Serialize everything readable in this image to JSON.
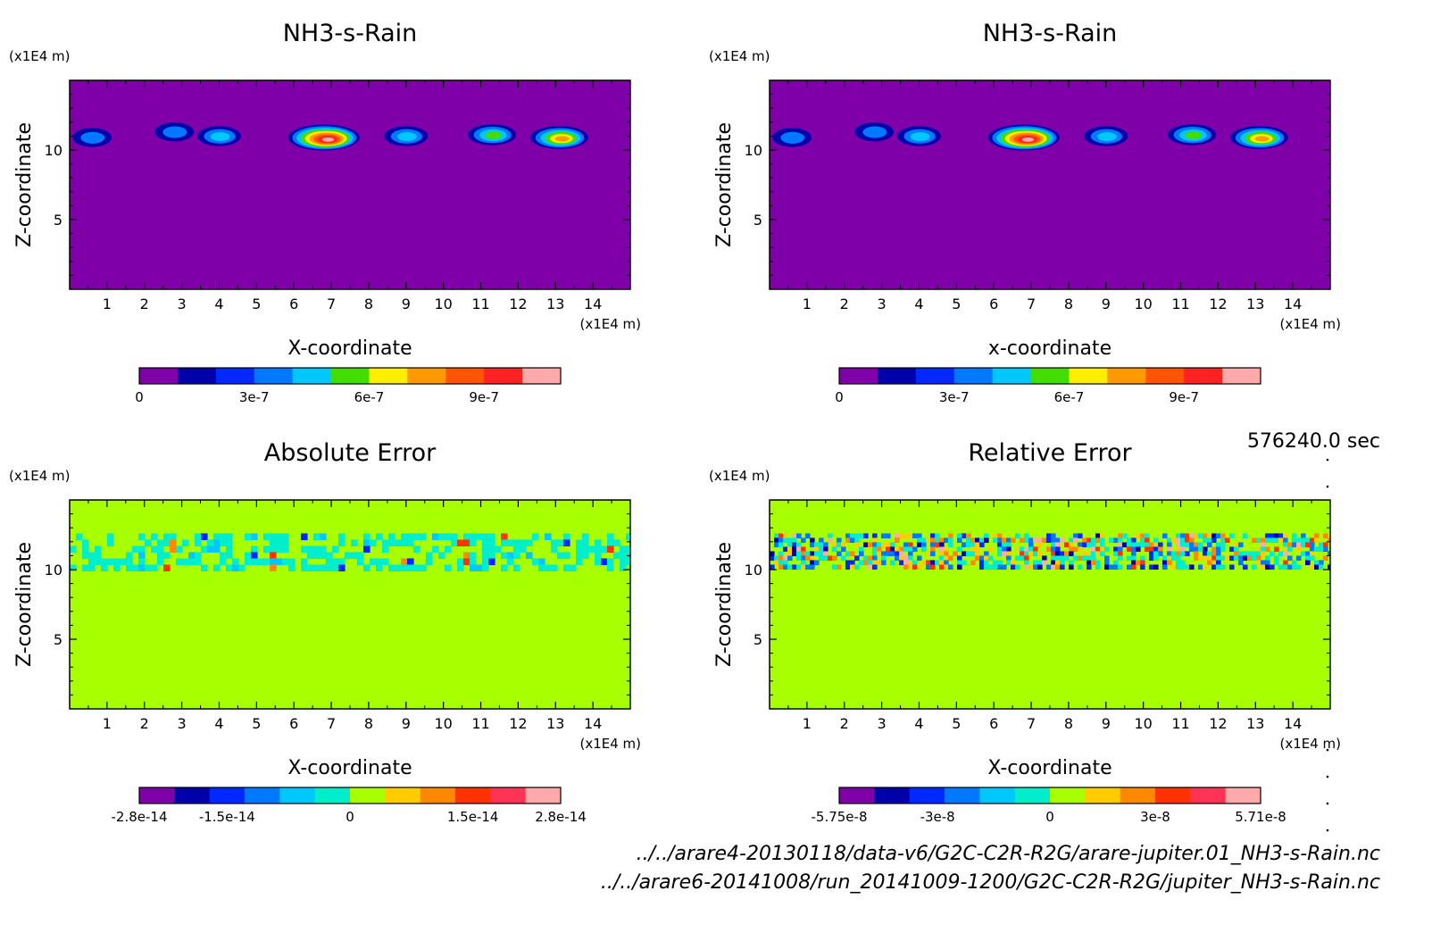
{
  "time_label": "576240.0 sec",
  "footer": {
    "line1": "../../arare4-20130118/data-v6/G2C-C2R-R2G/arare-jupiter.01_NH3-s-Rain.nc",
    "line2": "../../arare6-20141008/run_20141009-1200/G2C-C2R-R2G/jupiter_NH3-s-Rain.nc"
  },
  "chart_data": [
    {
      "type": "heatmap",
      "title": "NH3-s-Rain",
      "xlabel": "X-coordinate",
      "ylabel": "Z-coordinate",
      "x_unit": "(x1E4 m)",
      "y_unit": "(x1E4 m)",
      "xlim": [
        0,
        15
      ],
      "ylim": [
        0,
        15
      ],
      "xticks": [
        1,
        2,
        3,
        4,
        5,
        6,
        7,
        8,
        9,
        10,
        11,
        12,
        13,
        14
      ],
      "yticks": [
        5,
        10
      ],
      "background": "#7f00a8",
      "colorbar": {
        "colors": [
          "#7f00a8",
          "#0000aa",
          "#0028ff",
          "#0078ff",
          "#00c8ff",
          "#44dd00",
          "#ffee00",
          "#ff9900",
          "#ff5500",
          "#ff2222",
          "#ffaaaa"
        ],
        "tick_labels": [
          "0",
          "3e-7",
          "6e-7",
          "9e-7"
        ],
        "tick_positions": [
          0,
          3,
          6,
          9
        ]
      },
      "features": [
        {
          "x": 0.6,
          "z": 10.9,
          "peak": 3
        },
        {
          "x": 2.8,
          "z": 11.3,
          "peak": 3
        },
        {
          "x": 4.0,
          "z": 11.0,
          "peak": 4
        },
        {
          "x": 6.8,
          "z": 10.9,
          "peak": 10
        },
        {
          "x": 9.0,
          "z": 11.0,
          "peak": 4
        },
        {
          "x": 11.3,
          "z": 11.1,
          "peak": 5
        },
        {
          "x": 13.1,
          "z": 10.9,
          "peak": 7
        }
      ]
    },
    {
      "type": "heatmap",
      "title": "NH3-s-Rain",
      "xlabel": "x-coordinate",
      "ylabel": "Z-coordinate",
      "x_unit": "(x1E4 m)",
      "y_unit": "(x1E4 m)",
      "xlim": [
        0,
        15
      ],
      "ylim": [
        0,
        15
      ],
      "xticks": [
        1,
        2,
        3,
        4,
        5,
        6,
        7,
        8,
        9,
        10,
        11,
        12,
        13,
        14
      ],
      "yticks": [
        5,
        10
      ],
      "background": "#7f00a8",
      "colorbar": {
        "colors": [
          "#7f00a8",
          "#0000aa",
          "#0028ff",
          "#0078ff",
          "#00c8ff",
          "#44dd00",
          "#ffee00",
          "#ff9900",
          "#ff5500",
          "#ff2222",
          "#ffaaaa"
        ],
        "tick_labels": [
          "0",
          "3e-7",
          "6e-7",
          "9e-7"
        ],
        "tick_positions": [
          0,
          3,
          6,
          9
        ]
      },
      "features": [
        {
          "x": 0.6,
          "z": 10.9,
          "peak": 3
        },
        {
          "x": 2.8,
          "z": 11.3,
          "peak": 3
        },
        {
          "x": 4.0,
          "z": 11.0,
          "peak": 4
        },
        {
          "x": 6.8,
          "z": 10.9,
          "peak": 10
        },
        {
          "x": 9.0,
          "z": 11.0,
          "peak": 4
        },
        {
          "x": 11.3,
          "z": 11.1,
          "peak": 5
        },
        {
          "x": 13.1,
          "z": 10.9,
          "peak": 7
        }
      ]
    },
    {
      "type": "heatmap",
      "title": "Absolute Error",
      "xlabel": "X-coordinate",
      "ylabel": "Z-coordinate",
      "x_unit": "(x1E4 m)",
      "y_unit": "(x1E4 m)",
      "xlim": [
        0,
        15
      ],
      "ylim": [
        0,
        15
      ],
      "xticks": [
        1,
        2,
        3,
        4,
        5,
        6,
        7,
        8,
        9,
        10,
        11,
        12,
        13,
        14
      ],
      "yticks": [
        5,
        10
      ],
      "background": "#a8ff00",
      "noise_band": {
        "z_min": 10.0,
        "z_max": 12.6,
        "style": "abs"
      },
      "colorbar": {
        "colors": [
          "#7f00a8",
          "#0000aa",
          "#0028ff",
          "#0078ff",
          "#00c8ff",
          "#00eecc",
          "#a8ff00",
          "#ffcc00",
          "#ff8800",
          "#ff3300",
          "#ff3355",
          "#ffaaaa"
        ],
        "tick_labels": [
          "-2.8e-14",
          "-1.5e-14",
          "0",
          "1.5e-14",
          "2.8e-14"
        ],
        "tick_positions": [
          0,
          2.5,
          6,
          9.5,
          12
        ]
      }
    },
    {
      "type": "heatmap",
      "title": "Relative Error",
      "xlabel": "X-coordinate",
      "ylabel": "Z-coordinate",
      "x_unit": "(x1E4 m)",
      "y_unit": "(x1E4 m)",
      "xlim": [
        0,
        15
      ],
      "ylim": [
        0,
        15
      ],
      "xticks": [
        1,
        2,
        3,
        4,
        5,
        6,
        7,
        8,
        9,
        10,
        11,
        12,
        13,
        14
      ],
      "yticks": [
        5,
        10
      ],
      "background": "#a8ff00",
      "noise_band": {
        "z_min": 10.1,
        "z_max": 12.6,
        "style": "rel"
      },
      "colorbar": {
        "colors": [
          "#7f00a8",
          "#0000aa",
          "#0028ff",
          "#0078ff",
          "#00c8ff",
          "#00eecc",
          "#a8ff00",
          "#ffcc00",
          "#ff8800",
          "#ff3300",
          "#ff3355",
          "#ffaaaa"
        ],
        "tick_labels": [
          "-5.75e-8",
          "-3e-8",
          "0",
          "3e-8",
          "5.71e-8"
        ],
        "tick_positions": [
          0,
          2.8,
          6,
          9,
          12
        ]
      }
    }
  ]
}
